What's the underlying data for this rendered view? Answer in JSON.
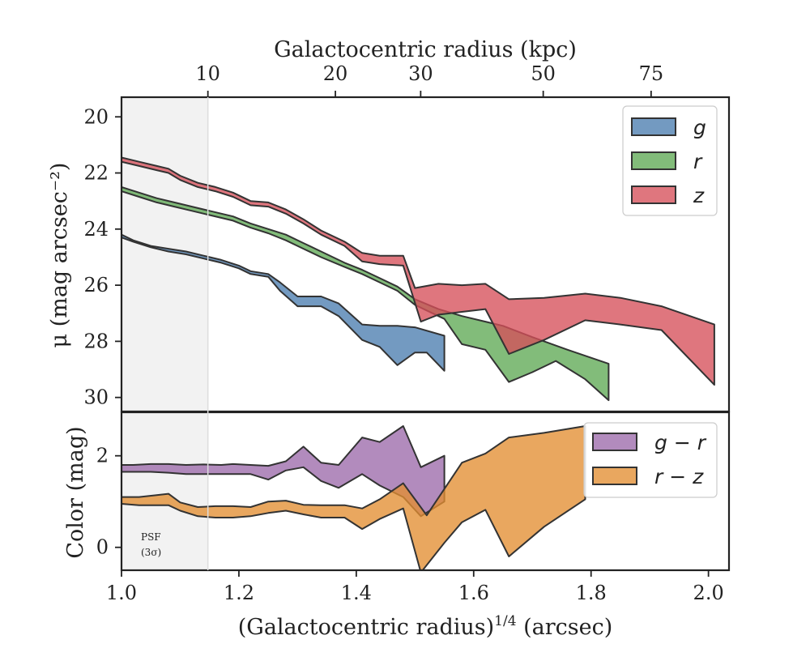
{
  "chart_data": [
    {
      "type": "area",
      "panel": "surface-brightness",
      "top_xlabel": "Galactocentric radius (kpc)",
      "top_ticks": [
        {
          "label": "10",
          "x": 1.1472
        },
        {
          "label": "20",
          "x": 1.3644
        },
        {
          "label": "30",
          "x": 1.5097
        },
        {
          "label": "50",
          "x": 1.7185
        },
        {
          "label": "75",
          "x": 1.9023
        }
      ],
      "ylabel": "μ (mag arcsec⁻²)",
      "ylim": [
        30.5,
        19.3
      ],
      "yticks": [
        20,
        22,
        24,
        26,
        28,
        30
      ],
      "grid": false,
      "legend_position": "top-right",
      "series": [
        {
          "name": "g",
          "color": "#4c7eb0",
          "upper": [
            [
              1.0,
              24.2
            ],
            [
              1.02,
              24.4
            ],
            [
              1.05,
              24.6
            ],
            [
              1.08,
              24.7
            ],
            [
              1.11,
              24.8
            ],
            [
              1.14,
              24.95
            ],
            [
              1.17,
              25.1
            ],
            [
              1.2,
              25.3
            ],
            [
              1.22,
              25.5
            ],
            [
              1.25,
              25.6
            ],
            [
              1.27,
              25.9
            ],
            [
              1.3,
              26.4
            ],
            [
              1.34,
              26.4
            ],
            [
              1.37,
              26.65
            ],
            [
              1.41,
              27.4
            ],
            [
              1.44,
              27.45
            ],
            [
              1.47,
              27.45
            ],
            [
              1.5,
              27.5
            ],
            [
              1.55,
              27.8
            ]
          ],
          "lower": [
            [
              1.0,
              24.3
            ],
            [
              1.02,
              24.45
            ],
            [
              1.05,
              24.65
            ],
            [
              1.08,
              24.8
            ],
            [
              1.11,
              24.9
            ],
            [
              1.14,
              25.05
            ],
            [
              1.17,
              25.2
            ],
            [
              1.2,
              25.4
            ],
            [
              1.22,
              25.6
            ],
            [
              1.25,
              25.7
            ],
            [
              1.27,
              26.2
            ],
            [
              1.3,
              26.75
            ],
            [
              1.34,
              26.75
            ],
            [
              1.37,
              27.1
            ],
            [
              1.41,
              27.95
            ],
            [
              1.44,
              28.2
            ],
            [
              1.47,
              28.85
            ],
            [
              1.5,
              28.4
            ],
            [
              1.52,
              28.4
            ],
            [
              1.55,
              29.05
            ]
          ]
        },
        {
          "name": "r",
          "color": "#5fa955",
          "upper": [
            [
              1.0,
              22.5
            ],
            [
              1.03,
              22.7
            ],
            [
              1.06,
              22.9
            ],
            [
              1.09,
              23.05
            ],
            [
              1.12,
              23.2
            ],
            [
              1.15,
              23.35
            ],
            [
              1.19,
              23.55
            ],
            [
              1.22,
              23.8
            ],
            [
              1.25,
              24.0
            ],
            [
              1.28,
              24.2
            ],
            [
              1.31,
              24.5
            ],
            [
              1.34,
              24.8
            ],
            [
              1.38,
              25.2
            ],
            [
              1.41,
              25.45
            ],
            [
              1.44,
              25.75
            ],
            [
              1.47,
              26.05
            ],
            [
              1.5,
              26.5
            ],
            [
              1.54,
              26.85
            ],
            [
              1.58,
              27.1
            ],
            [
              1.62,
              27.3
            ],
            [
              1.65,
              27.45
            ],
            [
              1.7,
              27.85
            ],
            [
              1.76,
              28.3
            ],
            [
              1.83,
              28.8
            ]
          ],
          "lower": [
            [
              1.0,
              22.65
            ],
            [
              1.03,
              22.85
            ],
            [
              1.06,
              23.05
            ],
            [
              1.09,
              23.2
            ],
            [
              1.12,
              23.35
            ],
            [
              1.15,
              23.5
            ],
            [
              1.19,
              23.7
            ],
            [
              1.22,
              23.95
            ],
            [
              1.25,
              24.15
            ],
            [
              1.28,
              24.4
            ],
            [
              1.31,
              24.7
            ],
            [
              1.34,
              25.0
            ],
            [
              1.38,
              25.35
            ],
            [
              1.41,
              25.6
            ],
            [
              1.44,
              25.9
            ],
            [
              1.47,
              26.2
            ],
            [
              1.5,
              26.7
            ],
            [
              1.52,
              26.9
            ],
            [
              1.55,
              27.2
            ],
            [
              1.58,
              28.1
            ],
            [
              1.62,
              28.3
            ],
            [
              1.66,
              29.45
            ],
            [
              1.7,
              29.1
            ],
            [
              1.74,
              28.7
            ],
            [
              1.79,
              29.35
            ],
            [
              1.83,
              30.1
            ]
          ]
        },
        {
          "name": "z",
          "color": "#d64f5a",
          "upper": [
            [
              1.0,
              21.45
            ],
            [
              1.03,
              21.6
            ],
            [
              1.06,
              21.75
            ],
            [
              1.08,
              21.85
            ],
            [
              1.1,
              22.1
            ],
            [
              1.13,
              22.35
            ],
            [
              1.16,
              22.5
            ],
            [
              1.19,
              22.7
            ],
            [
              1.22,
              23.0
            ],
            [
              1.25,
              23.05
            ],
            [
              1.28,
              23.3
            ],
            [
              1.31,
              23.65
            ],
            [
              1.34,
              24.05
            ],
            [
              1.38,
              24.45
            ],
            [
              1.41,
              24.85
            ],
            [
              1.44,
              24.95
            ],
            [
              1.48,
              24.95
            ],
            [
              1.5,
              26.1
            ],
            [
              1.54,
              25.95
            ],
            [
              1.58,
              26.0
            ],
            [
              1.62,
              25.95
            ],
            [
              1.66,
              26.5
            ],
            [
              1.72,
              26.45
            ],
            [
              1.79,
              26.3
            ],
            [
              1.85,
              26.45
            ],
            [
              1.92,
              26.75
            ],
            [
              2.01,
              27.4
            ]
          ],
          "lower": [
            [
              1.0,
              21.6
            ],
            [
              1.03,
              21.75
            ],
            [
              1.06,
              21.9
            ],
            [
              1.08,
              22.0
            ],
            [
              1.1,
              22.25
            ],
            [
              1.13,
              22.5
            ],
            [
              1.16,
              22.65
            ],
            [
              1.19,
              22.85
            ],
            [
              1.22,
              23.15
            ],
            [
              1.25,
              23.2
            ],
            [
              1.28,
              23.45
            ],
            [
              1.31,
              23.8
            ],
            [
              1.34,
              24.2
            ],
            [
              1.38,
              24.6
            ],
            [
              1.41,
              25.15
            ],
            [
              1.44,
              25.25
            ],
            [
              1.48,
              25.3
            ],
            [
              1.51,
              27.3
            ],
            [
              1.54,
              27.05
            ],
            [
              1.58,
              26.95
            ],
            [
              1.62,
              26.85
            ],
            [
              1.66,
              28.45
            ],
            [
              1.72,
              27.95
            ],
            [
              1.79,
              27.25
            ],
            [
              1.85,
              27.4
            ],
            [
              1.92,
              27.6
            ],
            [
              2.01,
              29.55
            ]
          ]
        }
      ]
    },
    {
      "type": "area",
      "panel": "color",
      "xlabel": "(Galactocentric radius)^1/4 (arcsec)",
      "xlabel_base": "(Galactocentric radius)",
      "xlabel_sup": "1/4",
      "xlabel_unit": " (arcsec)",
      "xlim": [
        1.0,
        2.035
      ],
      "xticks": [
        1.0,
        1.2,
        1.4,
        1.6,
        1.8,
        2.0
      ],
      "xtick_labels": [
        "1.0",
        "1.2",
        "1.4",
        "1.6",
        "1.8",
        "2.0"
      ],
      "ylabel": "Color (mag)",
      "ylim": [
        -0.5,
        2.95
      ],
      "yticks": [
        0,
        2
      ],
      "grid": false,
      "legend_position": "top-right",
      "series": [
        {
          "name": "g − r",
          "color": "#9c6aaa",
          "upper": [
            [
              1.0,
              1.8
            ],
            [
              1.02,
              1.8
            ],
            [
              1.05,
              1.82
            ],
            [
              1.08,
              1.82
            ],
            [
              1.11,
              1.8
            ],
            [
              1.14,
              1.81
            ],
            [
              1.17,
              1.8
            ],
            [
              1.19,
              1.82
            ],
            [
              1.22,
              1.8
            ],
            [
              1.25,
              1.78
            ],
            [
              1.28,
              1.88
            ],
            [
              1.31,
              2.2
            ],
            [
              1.34,
              1.85
            ],
            [
              1.37,
              1.8
            ],
            [
              1.41,
              2.4
            ],
            [
              1.44,
              2.3
            ],
            [
              1.48,
              2.65
            ],
            [
              1.51,
              1.75
            ],
            [
              1.55,
              2.0
            ]
          ],
          "lower": [
            [
              1.0,
              1.65
            ],
            [
              1.02,
              1.65
            ],
            [
              1.05,
              1.65
            ],
            [
              1.08,
              1.63
            ],
            [
              1.11,
              1.6
            ],
            [
              1.14,
              1.6
            ],
            [
              1.17,
              1.6
            ],
            [
              1.19,
              1.6
            ],
            [
              1.22,
              1.6
            ],
            [
              1.25,
              1.48
            ],
            [
              1.28,
              1.68
            ],
            [
              1.31,
              1.75
            ],
            [
              1.34,
              1.45
            ],
            [
              1.37,
              1.3
            ],
            [
              1.41,
              1.6
            ],
            [
              1.44,
              1.35
            ],
            [
              1.48,
              1.1
            ],
            [
              1.51,
              0.68
            ],
            [
              1.55,
              1.0
            ]
          ]
        },
        {
          "name": "r − z",
          "color": "#e38e32",
          "upper": [
            [
              1.0,
              1.1
            ],
            [
              1.03,
              1.1
            ],
            [
              1.06,
              1.14
            ],
            [
              1.08,
              1.17
            ],
            [
              1.1,
              0.98
            ],
            [
              1.13,
              0.88
            ],
            [
              1.16,
              0.9
            ],
            [
              1.19,
              0.9
            ],
            [
              1.22,
              0.88
            ],
            [
              1.25,
              1.0
            ],
            [
              1.28,
              1.02
            ],
            [
              1.31,
              0.93
            ],
            [
              1.34,
              0.92
            ],
            [
              1.38,
              0.92
            ],
            [
              1.41,
              0.85
            ],
            [
              1.44,
              1.05
            ],
            [
              1.48,
              1.4
            ],
            [
              1.5,
              1.05
            ],
            [
              1.52,
              0.7
            ],
            [
              1.58,
              1.85
            ],
            [
              1.62,
              2.05
            ],
            [
              1.66,
              2.4
            ],
            [
              1.72,
              2.5
            ],
            [
              1.79,
              2.65
            ]
          ],
          "lower": [
            [
              1.0,
              0.95
            ],
            [
              1.03,
              0.92
            ],
            [
              1.06,
              0.92
            ],
            [
              1.08,
              0.92
            ],
            [
              1.1,
              0.8
            ],
            [
              1.13,
              0.68
            ],
            [
              1.16,
              0.65
            ],
            [
              1.19,
              0.65
            ],
            [
              1.22,
              0.68
            ],
            [
              1.25,
              0.75
            ],
            [
              1.28,
              0.8
            ],
            [
              1.31,
              0.72
            ],
            [
              1.34,
              0.65
            ],
            [
              1.38,
              0.65
            ],
            [
              1.41,
              0.4
            ],
            [
              1.44,
              0.62
            ],
            [
              1.48,
              0.85
            ],
            [
              1.51,
              -0.55
            ],
            [
              1.55,
              0.1
            ],
            [
              1.58,
              0.55
            ],
            [
              1.62,
              0.82
            ],
            [
              1.66,
              -0.2
            ],
            [
              1.72,
              0.45
            ],
            [
              1.79,
              1.05
            ]
          ]
        }
      ],
      "annotation": {
        "line1": "PSF",
        "line2": "(3σ)"
      }
    }
  ],
  "psf_region": {
    "x_start": 1.0,
    "x_end": 1.1472,
    "color": "#f2f2f2"
  }
}
